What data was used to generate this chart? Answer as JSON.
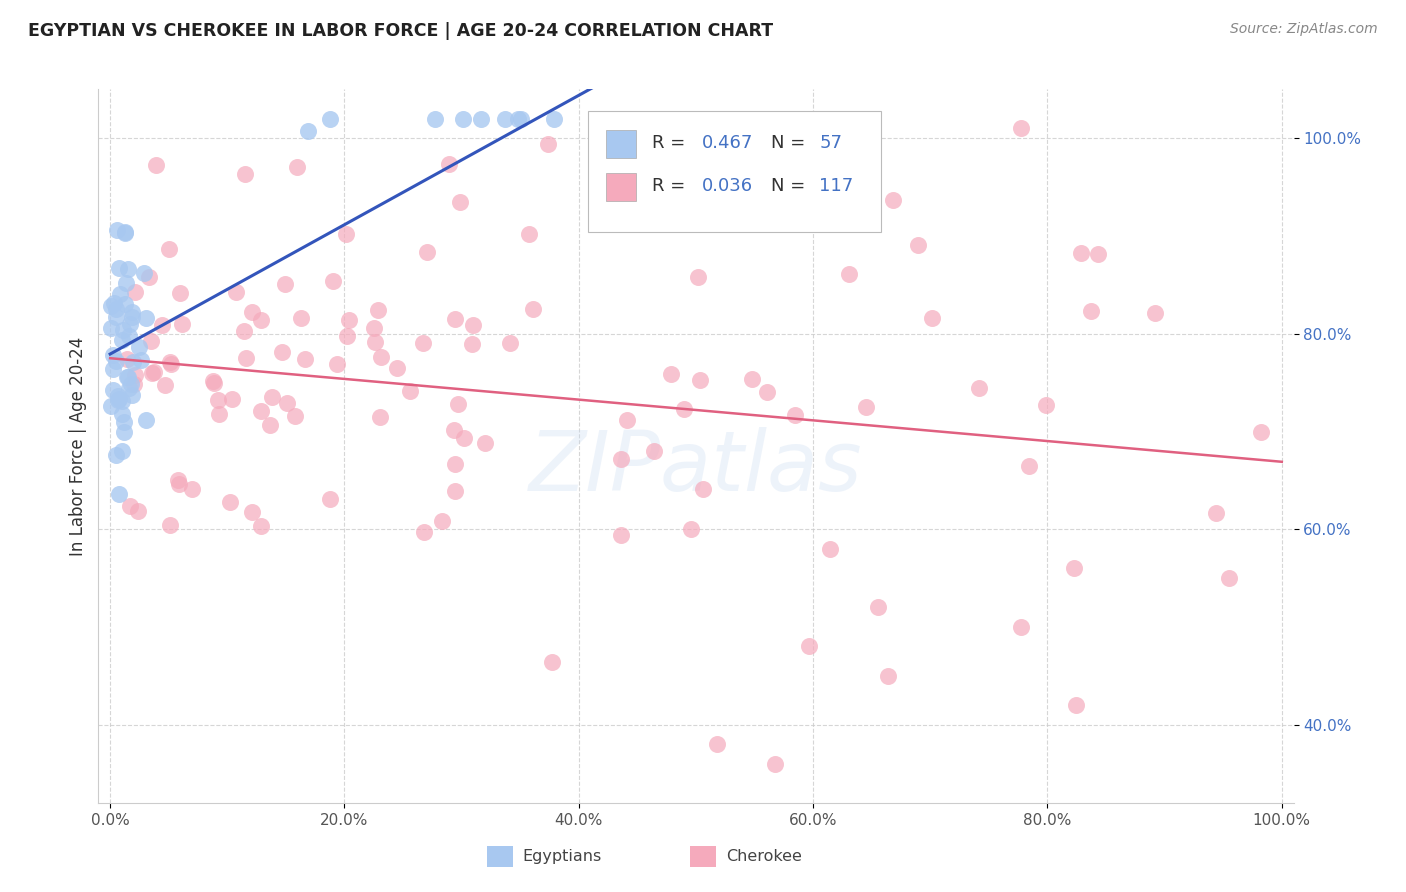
{
  "title": "EGYPTIAN VS CHEROKEE IN LABOR FORCE | AGE 20-24 CORRELATION CHART",
  "source": "Source: ZipAtlas.com",
  "ylabel": "In Labor Force | Age 20-24",
  "egyptian_R": 0.467,
  "egyptian_N": 57,
  "cherokee_R": 0.036,
  "cherokee_N": 117,
  "egyptian_color": "#A8C8F0",
  "cherokee_color": "#F5AABC",
  "egyptian_line_color": "#3355BB",
  "cherokee_line_color": "#E06080",
  "watermark": "ZIPatlas",
  "egyptians_label": "Egyptians",
  "cherokee_label": "Cherokee",
  "xlim": [
    -0.01,
    1.01
  ],
  "ylim": [
    0.32,
    1.05
  ],
  "x_ticks": [
    0.0,
    0.2,
    0.4,
    0.6,
    0.8,
    1.0
  ],
  "x_tick_labels": [
    "0.0%",
    "20.0%",
    "40.0%",
    "60.0%",
    "80.0%",
    "100.0%"
  ],
  "y_ticks": [
    0.4,
    0.6,
    0.8,
    1.0
  ],
  "y_tick_labels": [
    "40.0%",
    "60.0%",
    "80.0%",
    "100.0%"
  ],
  "legend_R1": "R = 0.467",
  "legend_N1": "N = 57",
  "legend_R2": "R = 0.036",
  "legend_N2": "N = 117"
}
